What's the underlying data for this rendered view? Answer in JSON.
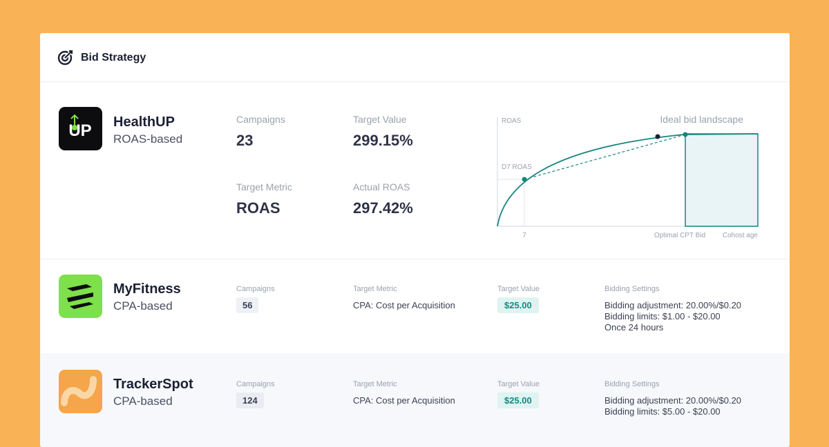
{
  "header": {
    "title": "Bid Strategy"
  },
  "apps": [
    {
      "name": "HealthUP",
      "strategy": "ROAS-based",
      "campaigns_label": "Campaigns",
      "campaigns": "23",
      "target_label": "Target Value",
      "target": "299.15%",
      "metric_label": "Target Metric",
      "metric": "ROAS",
      "actual_label": "Actual ROAS",
      "actual": "297.42%",
      "landscape": {
        "title": "Ideal bid landscape",
        "y_label": "ROAS",
        "marker_label": "D7 ROAS",
        "x_tick": "7",
        "x_marker": "Optimal CPT Bid",
        "x_label": "Cohost age"
      }
    },
    {
      "name": "MyFitness",
      "strategy": "CPA-based",
      "campaigns_label": "Campaigns",
      "campaigns": "56",
      "metric_label": "Target Metric",
      "metric": "CPA: Cost per Acquisition",
      "target_label": "Target Value",
      "target": "$25.00",
      "settings_label": "Bidding Settings",
      "settings": [
        "Bidding adjustment: 20.00%/$0.20",
        "Bidding limits: $1.00 - $20.00",
        "Once 24 hours"
      ]
    },
    {
      "name": "TrackerSpot",
      "strategy": "CPA-based",
      "campaigns_label": "Campaigns",
      "campaigns": "124",
      "metric_label": "Target Metric",
      "metric": "CPA: Cost per Acquisition",
      "target_label": "Target Value",
      "target": "$25.00",
      "settings_label": "Bidding Settings",
      "settings": [
        "Bidding adjustment: 20.00%/$0.20",
        "Bidding limits: $5.00 - $20.00"
      ]
    }
  ]
}
